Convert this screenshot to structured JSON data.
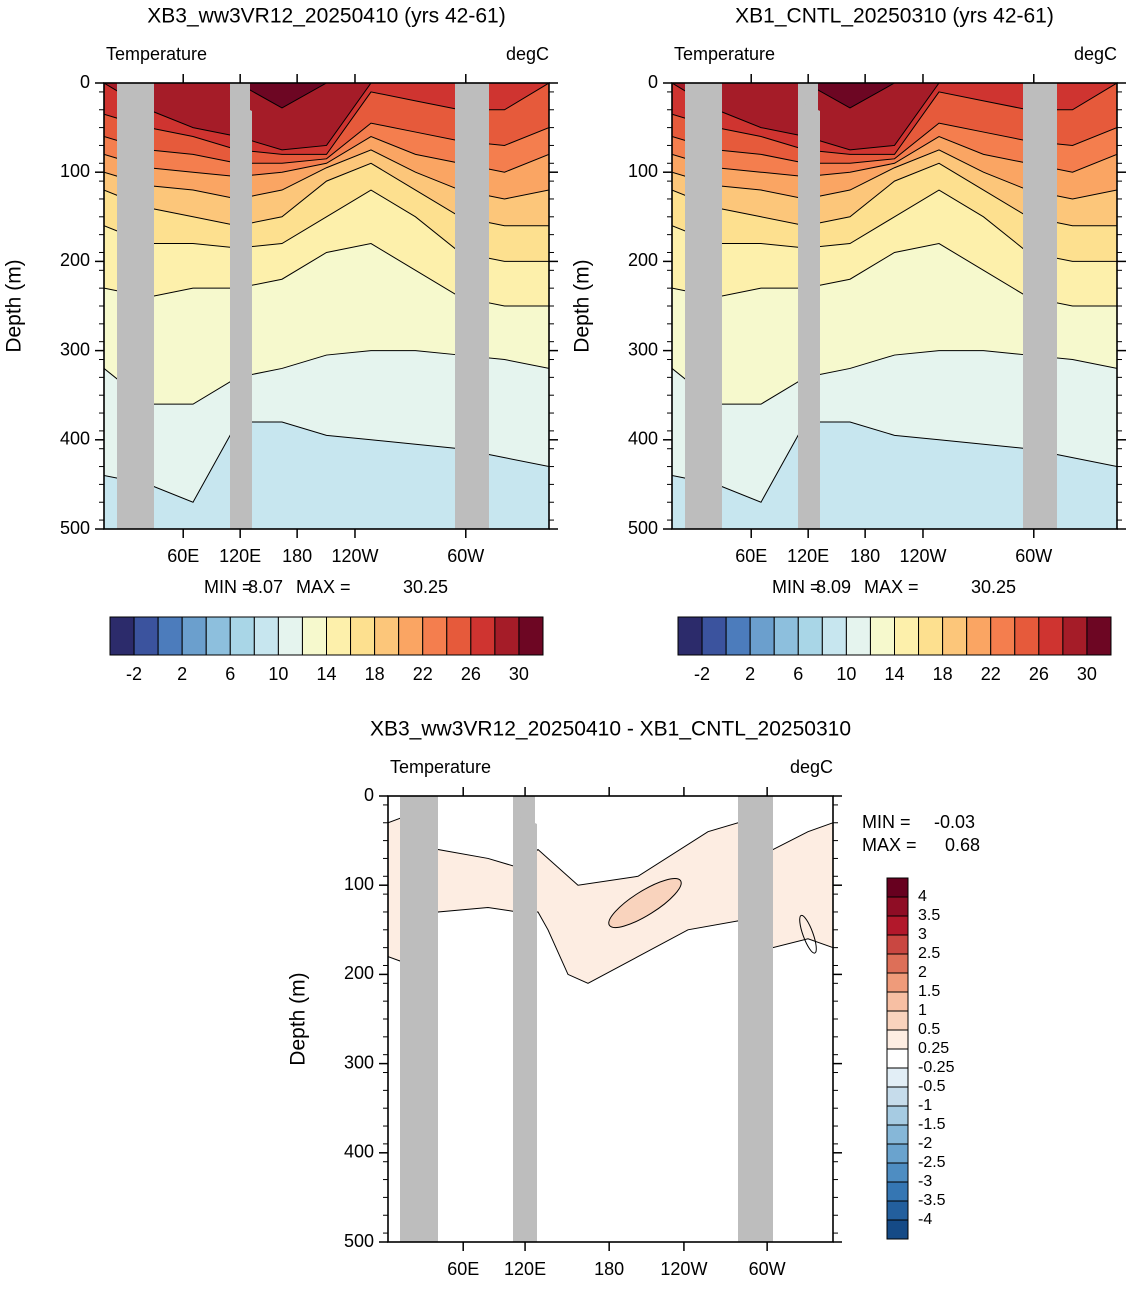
{
  "chart_data": [
    {
      "type": "contour",
      "title": "XB3_ww3VR12_20250410 (yrs 42-61)",
      "subtitle_left": "Temperature",
      "subtitle_right": "degC",
      "ylabel": "Depth (m)",
      "ylim": [
        0,
        500
      ],
      "yticks": [
        0,
        100,
        200,
        300,
        400,
        500
      ],
      "xtick_labels": [
        "60E",
        "120E",
        "180",
        "120W",
        "60W"
      ],
      "min_label": "MIN =",
      "min": 8.07,
      "max_label": "MAX =",
      "max": 30.25,
      "colorbar": {
        "ticks": [
          -2,
          2,
          6,
          10,
          14,
          18,
          22,
          26,
          30
        ],
        "colors": [
          "#2c2b6b",
          "#3b539e",
          "#4c7cbc",
          "#6b9fcd",
          "#8dbfdd",
          "#a9d6e7",
          "#c7e6ef",
          "#e5f4ee",
          "#f6f9cd",
          "#fdf0ab",
          "#fde08f",
          "#fcc67a",
          "#faa563",
          "#f47e4e",
          "#e65a3b",
          "#cf3430",
          "#a51c28",
          "#6d0623"
        ]
      }
    },
    {
      "type": "contour",
      "title": "XB1_CNTL_20250310 (yrs 42-61)",
      "subtitle_left": "Temperature",
      "subtitle_right": "degC",
      "ylabel": "Depth (m)",
      "ylim": [
        0,
        500
      ],
      "yticks": [
        0,
        100,
        200,
        300,
        400,
        500
      ],
      "xtick_labels": [
        "60E",
        "120E",
        "180",
        "120W",
        "60W"
      ],
      "min_label": "MIN =",
      "min": 8.09,
      "max_label": "MAX =",
      "max": 30.25,
      "colorbar": {
        "ticks": [
          -2,
          2,
          6,
          10,
          14,
          18,
          22,
          26,
          30
        ],
        "colors": [
          "#2c2b6b",
          "#3b539e",
          "#4c7cbc",
          "#6b9fcd",
          "#8dbfdd",
          "#a9d6e7",
          "#c7e6ef",
          "#e5f4ee",
          "#f6f9cd",
          "#fdf0ab",
          "#fde08f",
          "#fcc67a",
          "#faa563",
          "#f47e4e",
          "#e65a3b",
          "#cf3430",
          "#a51c28",
          "#6d0623"
        ]
      }
    },
    {
      "type": "contour_diff",
      "title": "XB3_ww3VR12_20250410 - XB1_CNTL_20250310",
      "subtitle_left": "Temperature",
      "subtitle_right": "degC",
      "ylabel": "Depth (m)",
      "ylim": [
        0,
        500
      ],
      "yticks": [
        0,
        100,
        200,
        300,
        400,
        500
      ],
      "xtick_labels": [
        "60E",
        "120E",
        "180",
        "120W",
        "60W"
      ],
      "min_label": "MIN =",
      "min": -0.03,
      "max_label": "MAX =",
      "max": 0.68,
      "colorbar": {
        "ticks": [
          4,
          3.5,
          3,
          2.5,
          2,
          1.5,
          1,
          0.5,
          0.25,
          -0.25,
          -0.5,
          -1,
          -1.5,
          -2,
          -2.5,
          -3,
          -3.5,
          -4
        ],
        "colors": [
          "#67001f",
          "#8f0d25",
          "#b2182b",
          "#c94741",
          "#dd6f58",
          "#ef9b7a",
          "#f7bfa3",
          "#f9d3bd",
          "#fdede2",
          "#ffffff",
          "#e2eef6",
          "#c6dceb",
          "#a6cbe2",
          "#86b7d8",
          "#6aa3ce",
          "#4e8dc2",
          "#3576b3",
          "#235f9d",
          "#154a86"
        ]
      }
    }
  ]
}
